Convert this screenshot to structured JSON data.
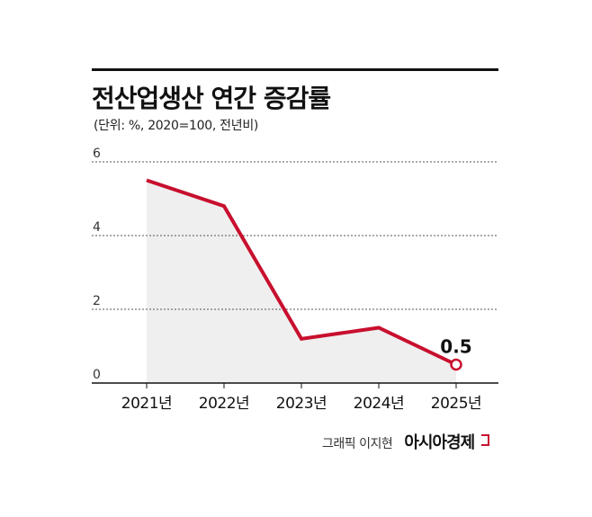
{
  "chart_data": {
    "type": "line",
    "title": "전산업생산 연간 증감률",
    "subtitle": "(단위: %, 2020=100, 전년비)",
    "categories": [
      "2021년",
      "2022년",
      "2023년",
      "2024년",
      "2025년"
    ],
    "series": [
      {
        "values": [
          5.5,
          4.8,
          1.2,
          1.5,
          0.5
        ]
      }
    ],
    "ylim": [
      0,
      6
    ],
    "yticks": [
      0,
      2,
      4,
      6
    ],
    "grid": true,
    "annotations": [
      {
        "category": "2025년",
        "label": "0.5"
      }
    ],
    "colors": {
      "line": "#c8102e",
      "area": "#efefef",
      "grid": "#555555"
    }
  },
  "credit": {
    "text": "그래픽 이지현",
    "brand": "아시아경제"
  }
}
